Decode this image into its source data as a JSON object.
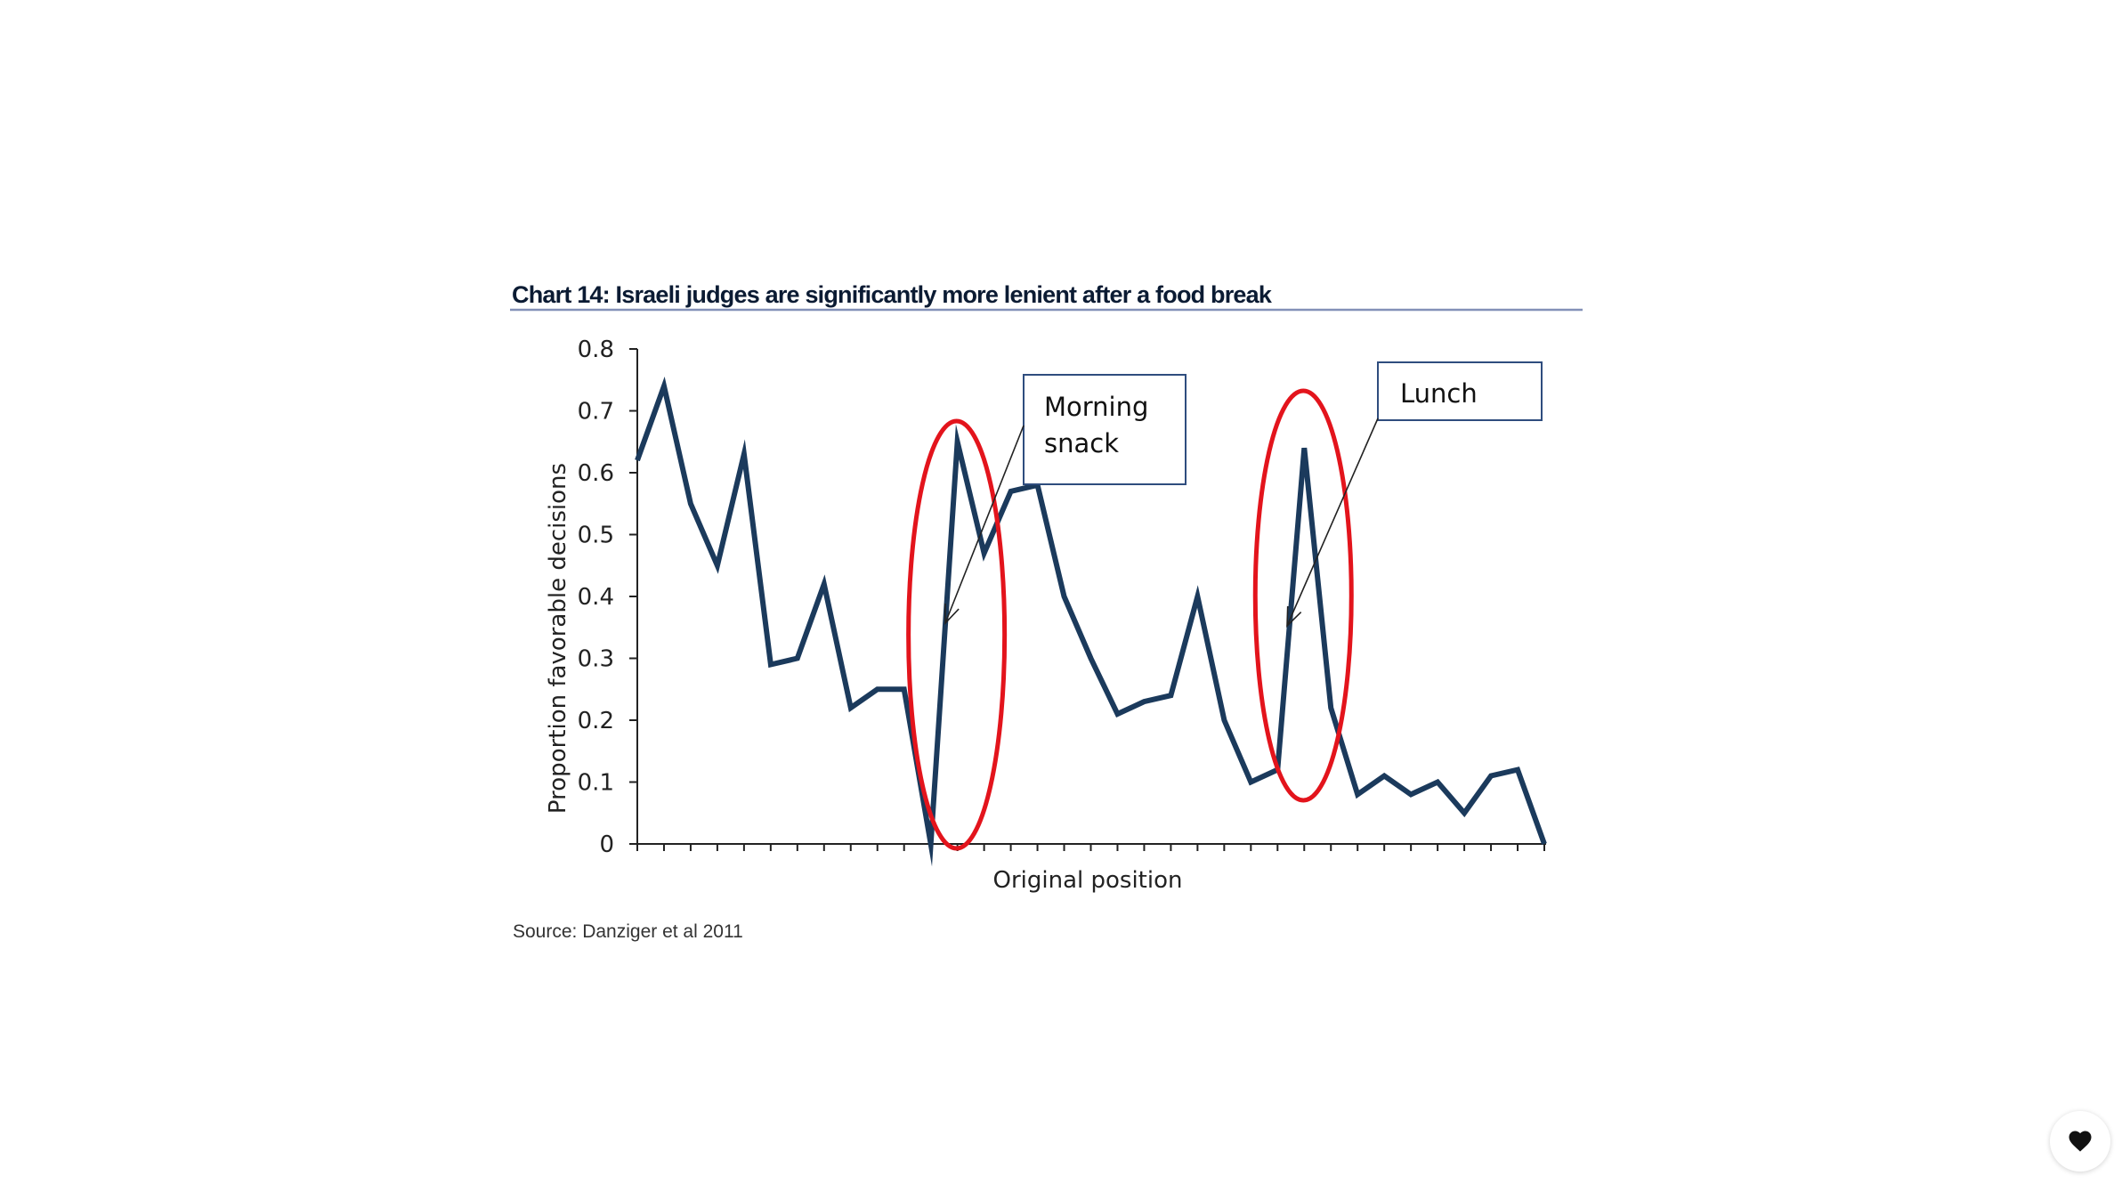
{
  "chart_data": {
    "type": "line",
    "title": "Chart 14: Israeli judges are significantly more lenient after a food break",
    "xlabel": "Original position",
    "ylabel": "Proportion favorable decisions",
    "ylim": [
      0,
      0.8
    ],
    "yticks": [
      "0",
      "0.1",
      "0.2",
      "0.3",
      "0.4",
      "0.5",
      "0.6",
      "0.7",
      "0.8"
    ],
    "grid": false,
    "series": [
      {
        "values": [
          0.62,
          0.74,
          0.55,
          0.45,
          0.63,
          0.29,
          0.3,
          0.42,
          0.22,
          0.25,
          0.25,
          0.0,
          0.65,
          0.47,
          0.57,
          0.58,
          0.4,
          0.3,
          0.21,
          0.23,
          0.24,
          0.4,
          0.2,
          0.1,
          0.12,
          0.64,
          0.22,
          0.08,
          0.11,
          0.08,
          0.1,
          0.05,
          0.11,
          0.12,
          0.0
        ]
      }
    ],
    "annotations": [
      {
        "label_lines": [
          "Morning",
          "snack"
        ],
        "target_index": 12
      },
      {
        "label_lines": [
          "Lunch"
        ],
        "target_index": 25
      }
    ],
    "colors": {
      "line": "#1b3a5c",
      "highlight": "#e3141c",
      "title_rule": "#8391b8"
    }
  },
  "source": "Source: Danziger et al 2011",
  "like_button": {
    "icon": "heart-icon"
  }
}
